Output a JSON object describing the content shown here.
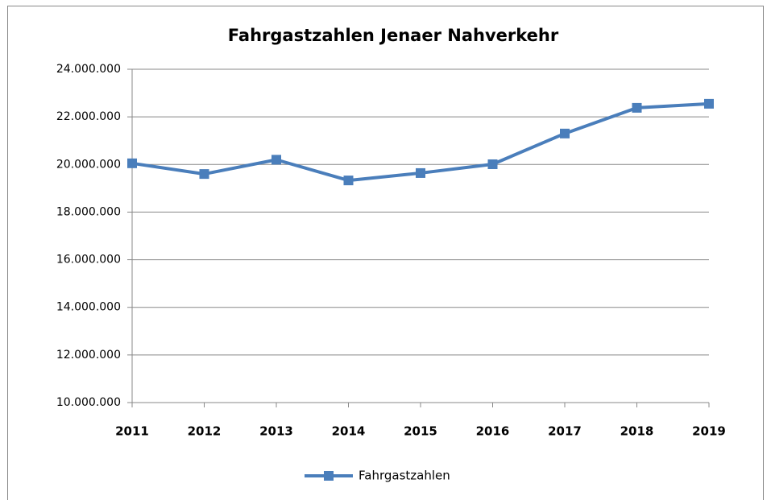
{
  "chart_data": {
    "type": "line",
    "title": "Fahrgastzahlen Jenaer Nahverkehr",
    "categories": [
      "2011",
      "2012",
      "2013",
      "2014",
      "2015",
      "2016",
      "2017",
      "2018",
      "2019"
    ],
    "series": [
      {
        "name": "Fahrgastzahlen",
        "color": "#4a7ebb",
        "values": [
          20050000,
          19600000,
          20200000,
          19330000,
          19640000,
          20010000,
          21300000,
          22380000,
          22550000
        ]
      }
    ],
    "ylim": [
      10000000,
      24000000
    ],
    "yticks": [
      {
        "value": 10000000,
        "label": "10.000.000"
      },
      {
        "value": 12000000,
        "label": "12.000.000"
      },
      {
        "value": 14000000,
        "label": "14.000.000"
      },
      {
        "value": 16000000,
        "label": "16.000.000"
      },
      {
        "value": 18000000,
        "label": "18.000.000"
      },
      {
        "value": 20000000,
        "label": "20.000.000"
      },
      {
        "value": 22000000,
        "label": "22.000.000"
      },
      {
        "value": 24000000,
        "label": "24.000.000"
      }
    ],
    "grid": true,
    "legend": "bottom"
  }
}
